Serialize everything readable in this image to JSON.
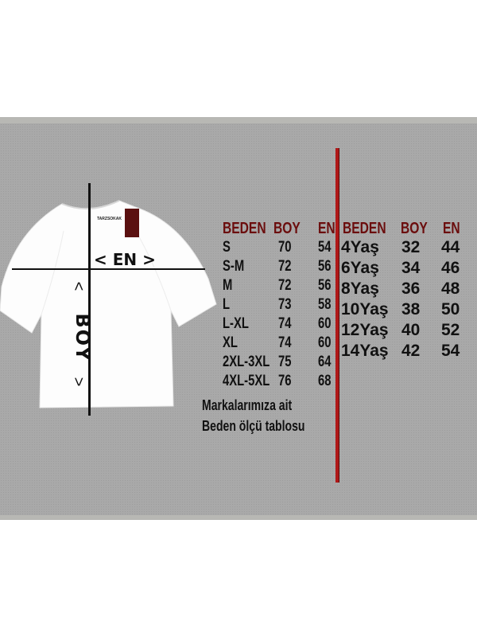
{
  "shirt": {
    "label_brand": "TARZSOKAK",
    "width_marker": "< EN >",
    "length_marker": "BOY",
    "length_arrow_top": "<",
    "length_arrow_bottom": ">"
  },
  "adult_table": {
    "headers": [
      "BEDEN",
      "BOY",
      "EN"
    ],
    "rows": [
      [
        "S",
        "70",
        "54"
      ],
      [
        "S-M",
        "72",
        "56"
      ],
      [
        "M",
        "72",
        "56"
      ],
      [
        "L",
        "73",
        "58"
      ],
      [
        "L-XL",
        "74",
        "60"
      ],
      [
        "XL",
        "74",
        "60"
      ],
      [
        "2XL-3XL",
        "75",
        "64"
      ],
      [
        "4XL-5XL",
        "76",
        "68"
      ]
    ]
  },
  "kids_table": {
    "headers": [
      "BEDEN",
      "BOY",
      "EN"
    ],
    "rows": [
      [
        "4Yaş",
        "32",
        "44"
      ],
      [
        "6Yaş",
        "34",
        "46"
      ],
      [
        "8Yaş",
        "36",
        "48"
      ],
      [
        "10Yaş",
        "38",
        "50"
      ],
      [
        "12Yaş",
        "40",
        "52"
      ],
      [
        "14Yaş",
        "42",
        "54"
      ]
    ]
  },
  "footer": {
    "line1": "Markalarımıza ait",
    "line2": "Beden ölçü tablosu"
  },
  "colors": {
    "header": "#6b0d0d",
    "divider": "#b01818",
    "background": "#a9a9a9"
  }
}
